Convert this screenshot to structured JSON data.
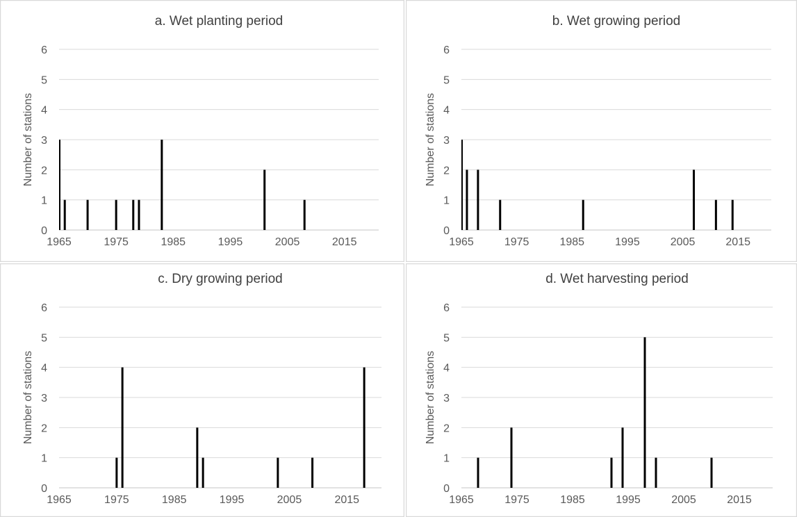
{
  "chart_data": [
    {
      "type": "bar",
      "title": "a. Wet planting period",
      "xlabel": "",
      "ylabel": "Number of stations",
      "xticks": [
        1965,
        1975,
        1985,
        1995,
        2005,
        2015
      ],
      "xlim": [
        1965,
        2021
      ],
      "ylim": [
        0,
        6
      ],
      "yticks": [
        0,
        1,
        2,
        3,
        4,
        5,
        6
      ],
      "grid": true,
      "x": [
        1965,
        1966,
        1970,
        1975,
        1978,
        1979,
        1983,
        2001,
        2008
      ],
      "values": [
        3,
        1,
        1,
        1,
        1,
        1,
        3,
        2,
        1
      ]
    },
    {
      "type": "bar",
      "title": "b. Wet growing period",
      "xlabel": "",
      "ylabel": "Number of stations",
      "xticks": [
        1965,
        1975,
        1985,
        1995,
        2005,
        2015
      ],
      "xlim": [
        1965,
        2021
      ],
      "ylim": [
        0,
        6
      ],
      "yticks": [
        0,
        1,
        2,
        3,
        4,
        5,
        6
      ],
      "grid": true,
      "x": [
        1965,
        1966,
        1968,
        1972,
        1987,
        2007,
        2011,
        2014
      ],
      "values": [
        3,
        2,
        2,
        1,
        1,
        2,
        1,
        1
      ]
    },
    {
      "type": "bar",
      "title": "c. Dry growing period",
      "xlabel": "",
      "ylabel": "Number of stations",
      "xticks": [
        1965,
        1975,
        1985,
        1995,
        2005,
        2015
      ],
      "xlim": [
        1965,
        2021
      ],
      "ylim": [
        0,
        6
      ],
      "yticks": [
        0,
        1,
        2,
        3,
        4,
        5,
        6
      ],
      "grid": true,
      "x": [
        1975,
        1976,
        1989,
        1990,
        2003,
        2009,
        2018
      ],
      "values": [
        1,
        4,
        2,
        1,
        1,
        1,
        4
      ]
    },
    {
      "type": "bar",
      "title": "d. Wet harvesting period",
      "xlabel": "",
      "ylabel": "Number of stations",
      "xticks": [
        1965,
        1975,
        1985,
        1995,
        2005,
        2015
      ],
      "xlim": [
        1965,
        2021
      ],
      "ylim": [
        0,
        6
      ],
      "yticks": [
        0,
        1,
        2,
        3,
        4,
        5,
        6
      ],
      "grid": true,
      "x": [
        1968,
        1974,
        1992,
        1994,
        1998,
        2000,
        2010
      ],
      "values": [
        1,
        2,
        1,
        2,
        5,
        1,
        1
      ]
    }
  ]
}
